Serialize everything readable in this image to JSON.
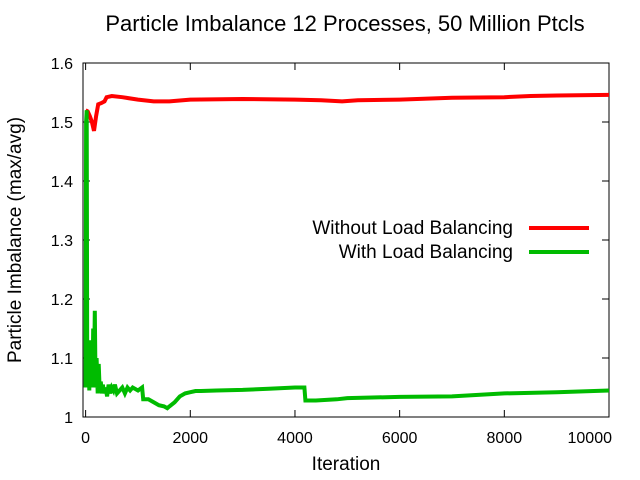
{
  "chart_data": {
    "type": "line",
    "title": "Particle Imbalance 12 Processes, 50 Million Ptcls",
    "xlabel": "Iteration",
    "ylabel": "Particle Imbalance (max/avg)",
    "xlim": [
      -50,
      10000
    ],
    "ylim": [
      1.0,
      1.6
    ],
    "xticks": [
      0,
      2000,
      4000,
      6000,
      8000,
      10000
    ],
    "xtick_labels": [
      "0",
      "2000",
      "4000",
      "6000",
      "8000",
      "10000"
    ],
    "yticks": [
      1.0,
      1.1,
      1.2,
      1.3,
      1.4,
      1.5,
      1.6
    ],
    "ytick_labels": [
      "1",
      "1.1",
      "1.2",
      "1.3",
      "1.4",
      "1.5",
      "1.6"
    ],
    "grid": false,
    "legend": "right",
    "series": [
      {
        "name": "Without Load Balancing",
        "color": "#ff0000",
        "x": [
          0,
          40,
          80,
          120,
          160,
          200,
          240,
          300,
          360,
          400,
          500,
          700,
          1000,
          1300,
          1600,
          2000,
          3000,
          4000,
          4500,
          4900,
          5200,
          6000,
          7000,
          8000,
          8500,
          9000,
          10000
        ],
        "y": [
          1.52,
          1.518,
          1.51,
          1.5,
          1.485,
          1.51,
          1.53,
          1.532,
          1.535,
          1.542,
          1.544,
          1.542,
          1.538,
          1.535,
          1.535,
          1.538,
          1.539,
          1.538,
          1.537,
          1.535,
          1.537,
          1.538,
          1.541,
          1.542,
          1.544,
          1.545,
          1.546
        ]
      },
      {
        "name": "With Load Balancing",
        "color": "#00bb00",
        "x": [
          0,
          10,
          20,
          30,
          40,
          55,
          70,
          85,
          100,
          115,
          130,
          145,
          160,
          175,
          190,
          210,
          230,
          250,
          270,
          290,
          310,
          330,
          350,
          380,
          410,
          440,
          470,
          500,
          530,
          560,
          600,
          650,
          700,
          750,
          800,
          850,
          900,
          1000,
          1080,
          1100,
          1200,
          1300,
          1400,
          1500,
          1560,
          1600,
          1700,
          1800,
          1900,
          2000,
          2100,
          2200,
          2500,
          3000,
          3500,
          4000,
          4180,
          4200,
          4400,
          4800,
          5000,
          6000,
          7000,
          8000,
          9000,
          10000
        ],
        "y": [
          1.05,
          1.5,
          1.52,
          1.1,
          1.05,
          1.12,
          1.045,
          1.13,
          1.06,
          1.11,
          1.05,
          1.15,
          1.06,
          1.18,
          1.05,
          1.1,
          1.04,
          1.09,
          1.045,
          1.06,
          1.04,
          1.055,
          1.04,
          1.05,
          1.035,
          1.055,
          1.04,
          1.05,
          1.045,
          1.055,
          1.04,
          1.045,
          1.05,
          1.04,
          1.05,
          1.045,
          1.05,
          1.045,
          1.05,
          1.03,
          1.03,
          1.025,
          1.02,
          1.018,
          1.015,
          1.018,
          1.025,
          1.035,
          1.04,
          1.042,
          1.044,
          1.044,
          1.045,
          1.046,
          1.048,
          1.05,
          1.05,
          1.028,
          1.028,
          1.03,
          1.032,
          1.034,
          1.035,
          1.04,
          1.042,
          1.045
        ]
      }
    ]
  }
}
